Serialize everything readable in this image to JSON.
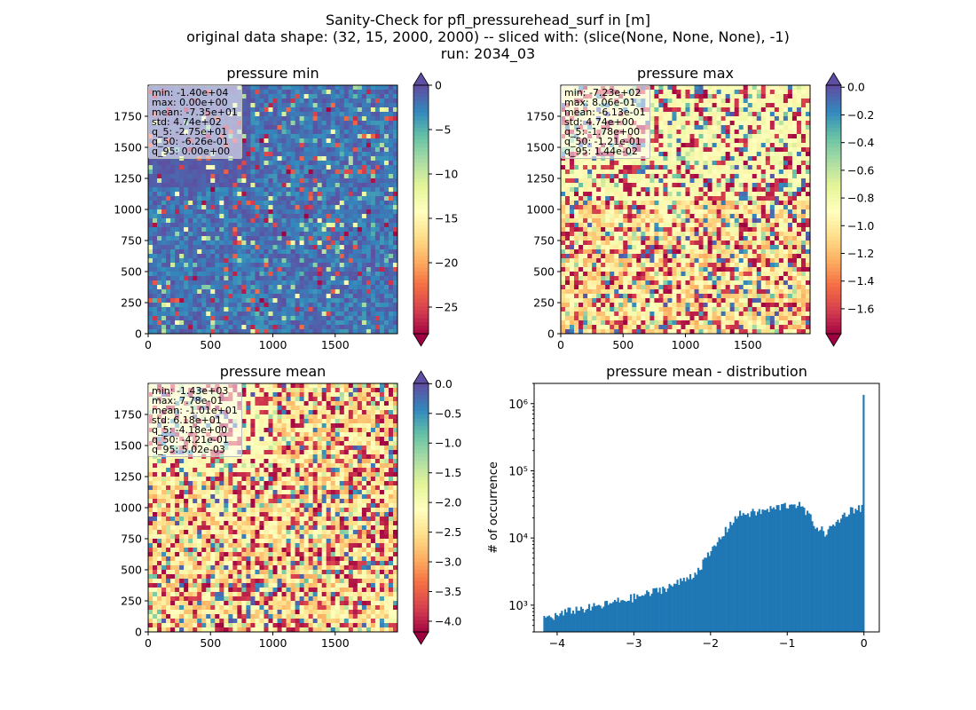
{
  "suptitle": {
    "line1": "Sanity-Check for pfl_pressurehead_surf in [m]",
    "line2": "original data shape: (32, 15, 2000, 2000) -- sliced with: (slice(None, None, None), -1)",
    "line3": "run: 2034_03"
  },
  "colors": {
    "histogram_bar": "#1f77b4",
    "frame": "#000000"
  },
  "colormap": "Spectral",
  "chart_data": [
    {
      "type": "heatmap",
      "title": "pressure min",
      "xlim": [
        0,
        2000
      ],
      "ylim": [
        0,
        2000
      ],
      "xticks": [
        "0",
        "500",
        "1000",
        "1500"
      ],
      "yticks": [
        "0",
        "250",
        "500",
        "750",
        "1000",
        "1250",
        "1500",
        "1750"
      ],
      "colorbar": {
        "min": -28,
        "max": 0,
        "extend": "both",
        "ticks": [
          "0",
          "−5",
          "−10",
          "−15",
          "−20",
          "−25"
        ]
      },
      "stats": [
        "min: -1.40e+04",
        "max: 0.00e+00",
        "mean: -7.35e+01",
        "std: 4.74e+02",
        "q_5: -2.75e+01",
        "q_50: -6.26e-01",
        "q_95: 0.00e+00"
      ]
    },
    {
      "type": "heatmap",
      "title": "pressure max",
      "xlim": [
        0,
        2000
      ],
      "ylim": [
        0,
        2000
      ],
      "xticks": [
        "0",
        "500",
        "1000",
        "1500"
      ],
      "yticks": [
        "0",
        "250",
        "500",
        "750",
        "1000",
        "1250",
        "1500",
        "1750"
      ],
      "colorbar": {
        "min": -1.78,
        "max": 0.0144,
        "extend": "both",
        "ticks": [
          "0.0",
          "−0.2",
          "−0.4",
          "−0.6",
          "−0.8",
          "−1.0",
          "−1.2",
          "−1.4",
          "−1.6"
        ]
      },
      "stats": [
        "min: -7.23e+02",
        "max: 8.06e-01",
        "mean: -6.13e-01",
        "std: 4.74e+00",
        "q_5: -1.78e+00",
        "q_50: -1.21e-01",
        "q_95: 1.44e-02"
      ]
    },
    {
      "type": "heatmap",
      "title": "pressure mean",
      "xlim": [
        0,
        2000
      ],
      "ylim": [
        0,
        2000
      ],
      "xticks": [
        "0",
        "500",
        "1000",
        "1500"
      ],
      "yticks": [
        "0",
        "250",
        "500",
        "750",
        "1000",
        "1250",
        "1500",
        "1750"
      ],
      "colorbar": {
        "min": -4.18,
        "max": 0.005,
        "extend": "both",
        "ticks": [
          "0.0",
          "−0.5",
          "−1.0",
          "−1.5",
          "−2.0",
          "−2.5",
          "−3.0",
          "−3.5",
          "−4.0"
        ]
      },
      "stats": [
        "min: -1.43e+03",
        "max: 7.78e-01",
        "mean: -1.01e+01",
        "std: 6.18e+01",
        "q_5: -4.18e+00",
        "q_50: -4.21e-01",
        "q_95: 5.02e-03"
      ]
    },
    {
      "type": "bar",
      "subtype": "histogram",
      "title": "pressure mean - distribution",
      "xlabel": "",
      "ylabel": "# of occurrence",
      "yscale": "log",
      "xlim": [
        -4.3,
        0.2
      ],
      "ylim": [
        400,
        2000000
      ],
      "xticks": [
        "−4",
        "−3",
        "−2",
        "−1",
        "0"
      ],
      "yticks": [
        "10³",
        "10⁴",
        "10⁵",
        "10⁶"
      ],
      "bin_start": -4.18,
      "bin_end": 0.005,
      "bin_count": 200,
      "anchors": [
        [
          -4.18,
          650
        ],
        [
          -4.0,
          700
        ],
        [
          -3.8,
          850
        ],
        [
          -3.6,
          900
        ],
        [
          -3.4,
          1000
        ],
        [
          -3.2,
          1150
        ],
        [
          -3.0,
          1300
        ],
        [
          -2.8,
          1500
        ],
        [
          -2.6,
          1800
        ],
        [
          -2.4,
          2200
        ],
        [
          -2.2,
          3000
        ],
        [
          -2.0,
          6000
        ],
        [
          -1.9,
          9000
        ],
        [
          -1.8,
          13000
        ],
        [
          -1.7,
          19000
        ],
        [
          -1.6,
          23000
        ],
        [
          -1.4,
          24000
        ],
        [
          -1.2,
          27000
        ],
        [
          -1.0,
          31000
        ],
        [
          -0.9,
          33000
        ],
        [
          -0.8,
          28000
        ],
        [
          -0.7,
          20000
        ],
        [
          -0.6,
          14000
        ],
        [
          -0.5,
          12000
        ],
        [
          -0.4,
          15000
        ],
        [
          -0.3,
          20000
        ],
        [
          -0.2,
          25000
        ],
        [
          -0.1,
          28000
        ],
        [
          -0.01,
          29000
        ],
        [
          0.005,
          1350000
        ]
      ]
    }
  ]
}
